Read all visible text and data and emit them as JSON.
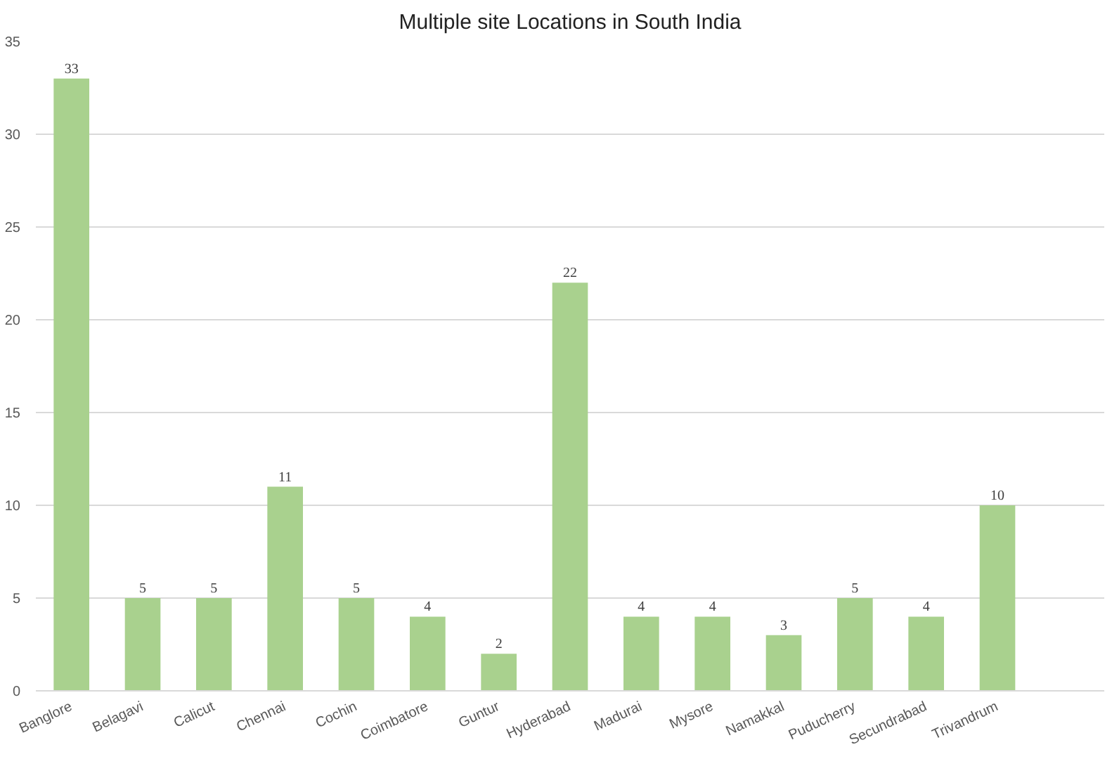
{
  "chart_data": {
    "type": "bar",
    "title": "Multiple site Locations in South India",
    "categories": [
      "Banglore",
      "Belagavi",
      "Calicut",
      "Chennai",
      "Cochin",
      "Coimbatore",
      "Guntur",
      "Hyderabad",
      "Madurai",
      "Mysore",
      "Namakkal",
      "Puducherry",
      "Secundrabad",
      "Trivandrum",
      null
    ],
    "values": [
      33,
      5,
      5,
      11,
      5,
      4,
      2,
      22,
      4,
      4,
      3,
      5,
      4,
      10,
      null
    ],
    "color": "#a9d18e",
    "ylim": [
      0,
      35
    ],
    "yticks": [
      0,
      5,
      10,
      15,
      20,
      25,
      30,
      35
    ],
    "grid": "y",
    "data_labels": true
  }
}
